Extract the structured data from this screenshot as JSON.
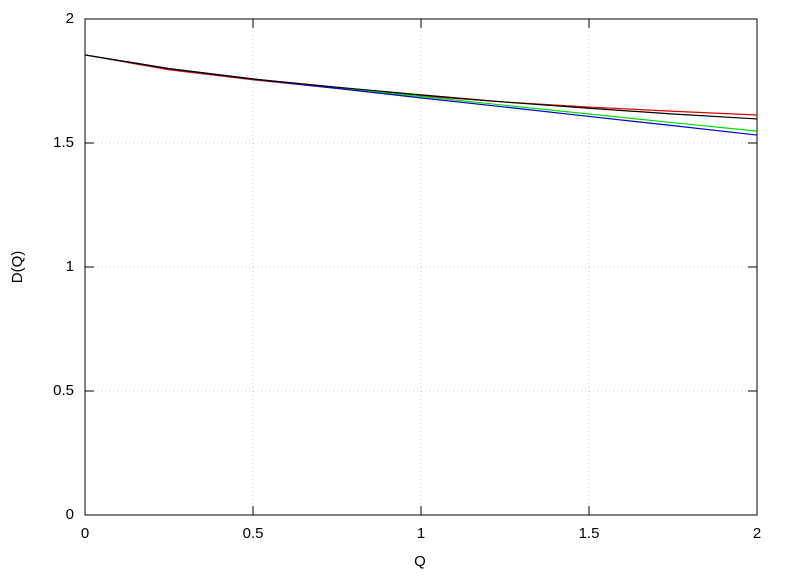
{
  "chart_data": {
    "type": "line",
    "xlabel": "Q",
    "ylabel": "D(Q)",
    "x": [
      0,
      0.25,
      0.5,
      0.75,
      1,
      1.25,
      1.5,
      1.75,
      2
    ],
    "series": [
      {
        "color": "#e00000",
        "values": [
          1.855,
          1.795,
          1.755,
          1.72,
          1.69,
          1.665,
          1.645,
          1.628,
          1.613
        ]
      },
      {
        "color": "#00e000",
        "values": [
          1.855,
          1.8,
          1.758,
          1.722,
          1.688,
          1.652,
          1.617,
          1.582,
          1.548
        ]
      },
      {
        "color": "#0000d0",
        "values": [
          1.855,
          1.8,
          1.758,
          1.72,
          1.682,
          1.645,
          1.607,
          1.57,
          1.532
        ]
      },
      {
        "color": "#000000",
        "values": [
          1.855,
          1.8,
          1.758,
          1.725,
          1.694,
          1.665,
          1.64,
          1.617,
          1.597
        ]
      }
    ],
    "xlim": [
      0,
      2
    ],
    "ylim": [
      0,
      2
    ],
    "xticks": [
      0,
      0.5,
      1,
      1.5,
      2
    ],
    "yticks": [
      0,
      0.5,
      1,
      1.5,
      2
    ],
    "grid": true
  }
}
